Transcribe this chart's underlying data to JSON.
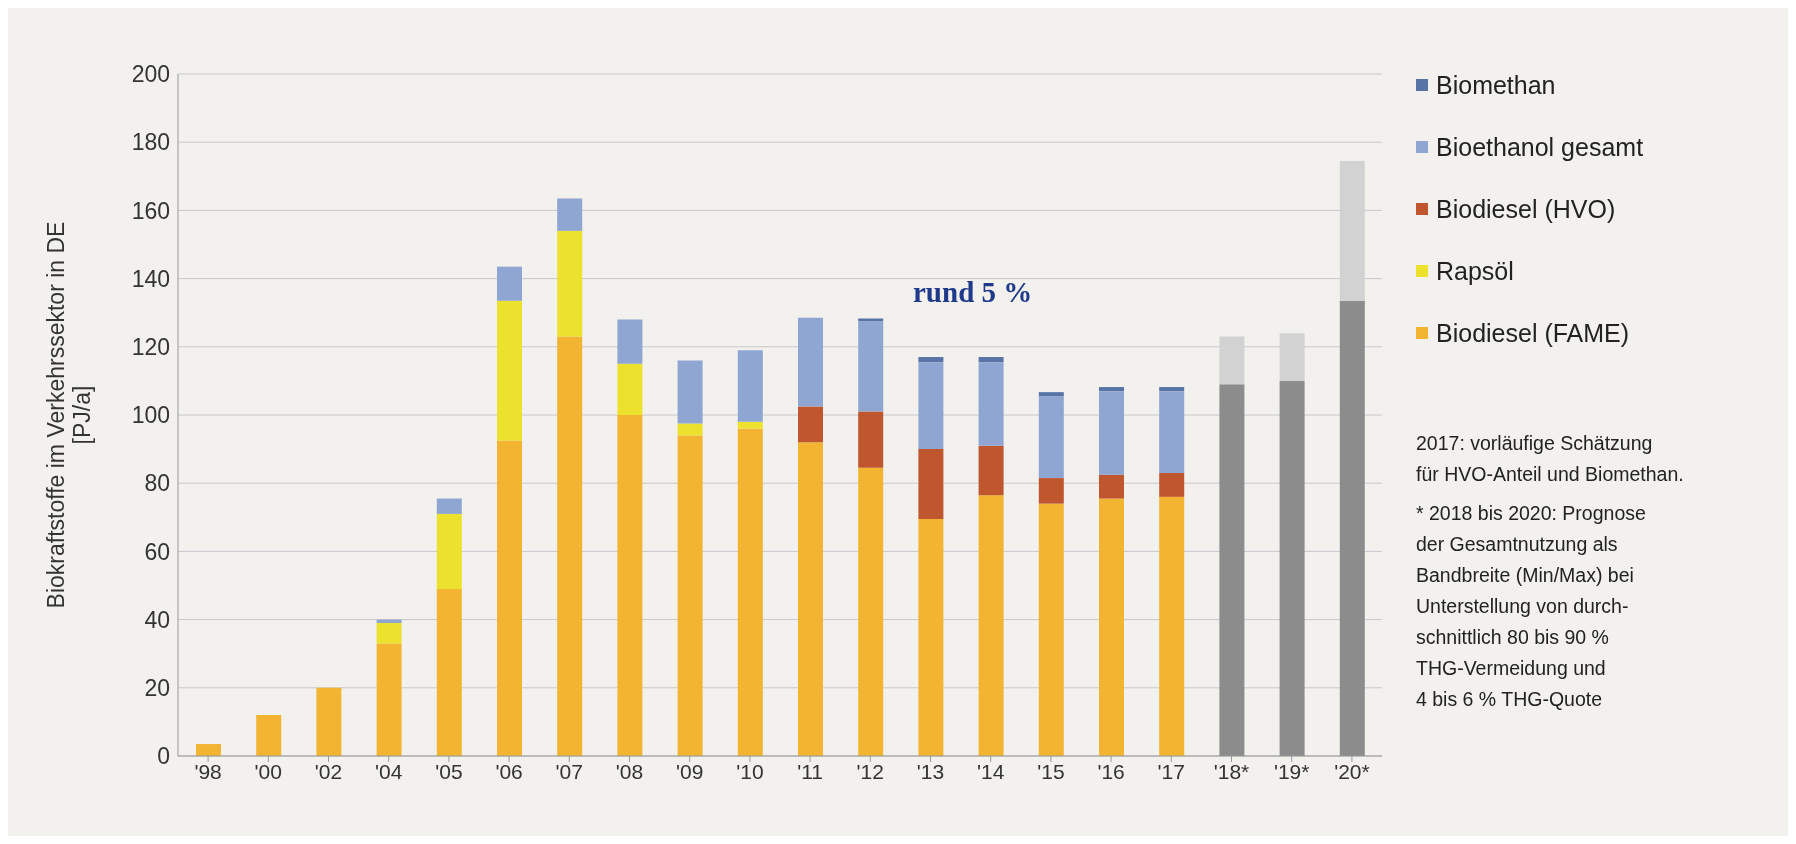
{
  "chart_data": {
    "type": "bar",
    "stacked": true,
    "ylabel": "Biokraftstoffe im Verkehrssektor in DE\n[PJ/a]",
    "categories": [
      "'98",
      "'00",
      "'02",
      "'04",
      "'05",
      "'06",
      "'07",
      "'08",
      "'09",
      "'10",
      "'11",
      "'12",
      "'13",
      "'14",
      "'15",
      "'16",
      "'17",
      "'18*",
      "'19*",
      "'20*"
    ],
    "series": [
      {
        "name": "Biodiesel (FAME)",
        "color": "#f2b431",
        "values": [
          3.5,
          12,
          20,
          33,
          49,
          92.5,
          123,
          100,
          94,
          96,
          92,
          84.5,
          69.5,
          76.5,
          74,
          75.5,
          76,
          null,
          null,
          null
        ]
      },
      {
        "name": "Rapsöl",
        "color": "#ece12c",
        "values": [
          0,
          0,
          0,
          6,
          22,
          41,
          31,
          15,
          3.5,
          2,
          0,
          0,
          0,
          0,
          0,
          0,
          0,
          null,
          null,
          null
        ]
      },
      {
        "name": "Biodiesel (HVO)",
        "color": "#c0562e",
        "values": [
          0,
          0,
          0,
          0,
          0,
          0,
          0,
          0,
          0,
          0,
          10.5,
          16.5,
          20.5,
          14.5,
          7.5,
          7,
          7,
          null,
          null,
          null
        ]
      },
      {
        "name": "Bioethanol gesamt",
        "color": "#8fa5d2",
        "values": [
          0,
          0,
          0,
          1,
          4.5,
          10,
          9.5,
          13,
          18.5,
          21,
          26,
          26.5,
          25.5,
          24.5,
          24,
          24.5,
          24,
          null,
          null,
          null
        ]
      },
      {
        "name": "Biomethan",
        "color": "#5874a6",
        "values": [
          0,
          0,
          0,
          0,
          0,
          0,
          0,
          0,
          0,
          0,
          0,
          0.8,
          1.5,
          1.5,
          1.2,
          1.2,
          1.2,
          null,
          null,
          null
        ]
      },
      {
        "color": "#8c8c8c",
        "values": [
          null,
          null,
          null,
          null,
          null,
          null,
          null,
          null,
          null,
          null,
          null,
          null,
          null,
          null,
          null,
          null,
          null,
          109,
          110,
          133.5
        ]
      },
      {
        "color": "#d2d2d2",
        "values": [
          null,
          null,
          null,
          null,
          null,
          null,
          null,
          null,
          null,
          null,
          null,
          null,
          null,
          null,
          null,
          null,
          null,
          14,
          14,
          41
        ]
      }
    ],
    "ylim": [
      0,
      200
    ],
    "yticks": [
      0,
      20,
      40,
      60,
      80,
      100,
      120,
      140,
      160,
      180,
      200
    ],
    "grid": "y",
    "legend": "right",
    "annotations": [
      "rund 5 %",
      "2017: vorläufige Schätzung\nfür HVO-Anteil und Biomethan.",
      "* 2018 bis 2020: Prognose\nder Gesamtnutzung als\nBandbreite (Min/Max) bei\nUnterstellung von durch-\nschnittlich 80 bis 90 %\nTHG-Vermeidung und\n4 bis 6 % THG-Quote"
    ]
  }
}
